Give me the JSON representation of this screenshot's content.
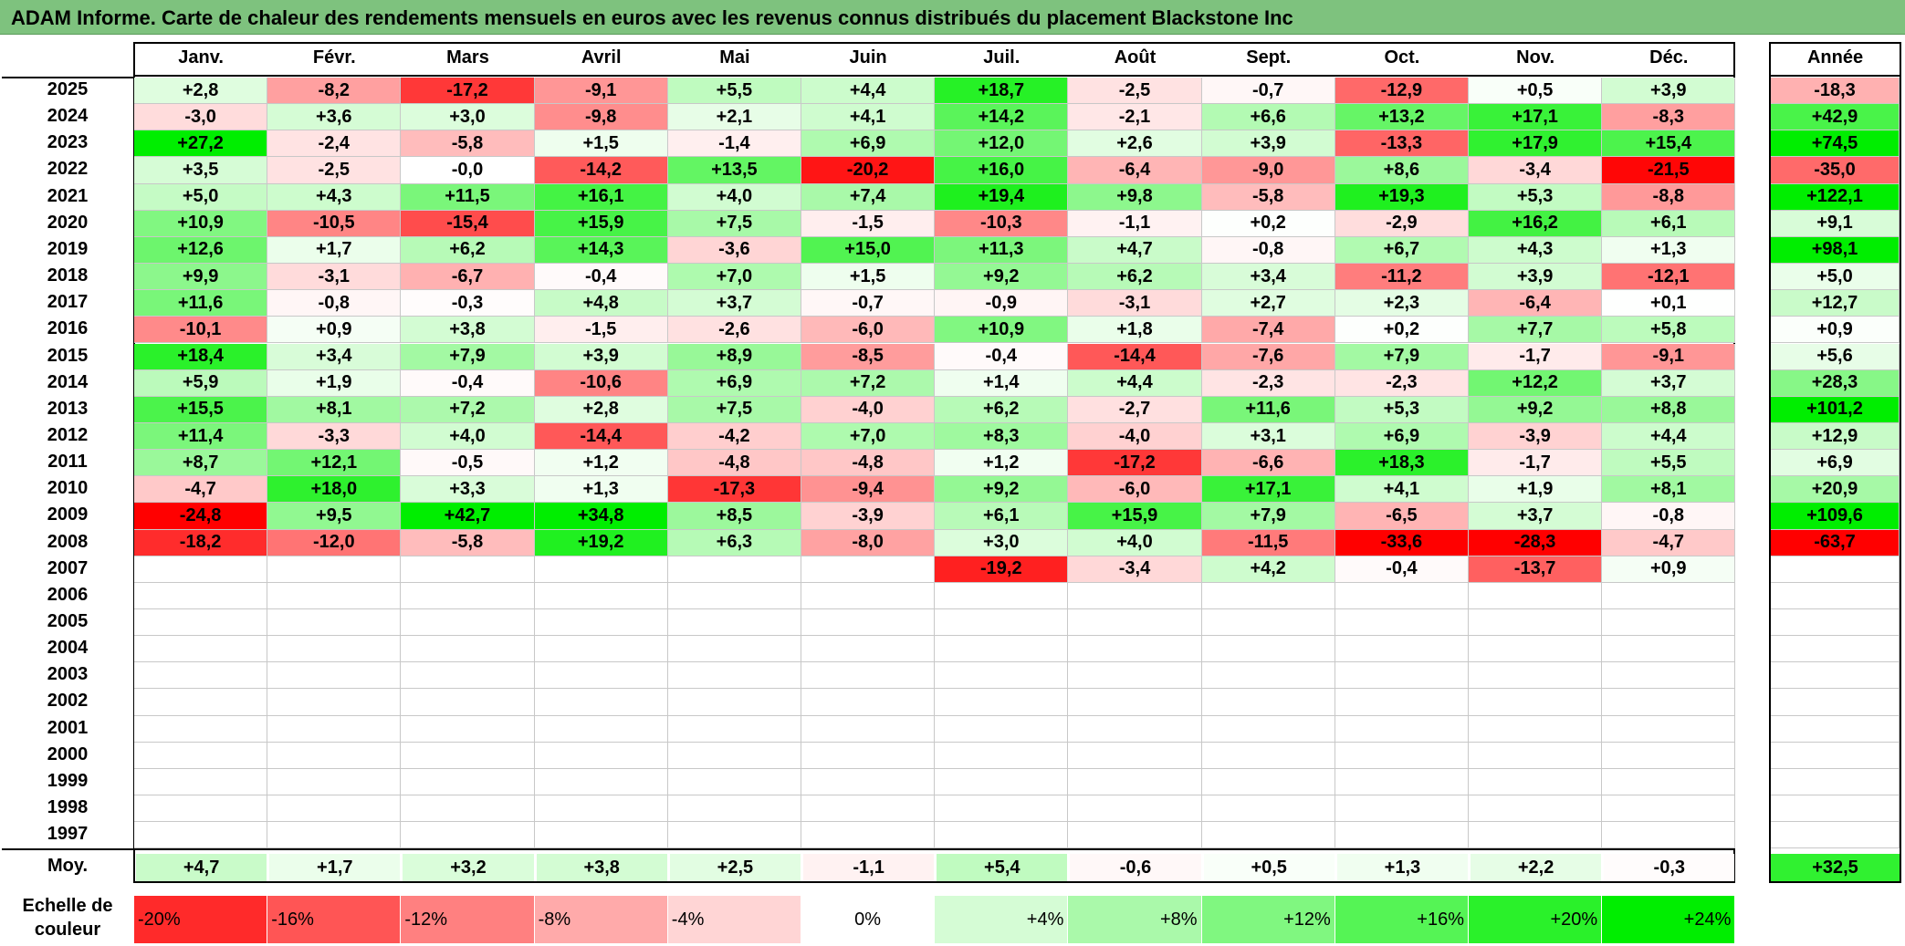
{
  "title": "ADAM Informe. Carte de chaleur des rendements mensuels en euros avec les revenus connus distribués du placement Blackstone Inc",
  "months": [
    "Janv.",
    "Févr.",
    "Mars",
    "Avril",
    "Mai",
    "Juin",
    "Juil.",
    "Août",
    "Sept.",
    "Oct.",
    "Nov.",
    "Déc."
  ],
  "annual_header": "Année",
  "average_label": "Moy.",
  "scale_title": "Echelle de couleur",
  "colors": {
    "title_bg": "#7ec27e",
    "negative_max": "#ff0000",
    "positive_max": "#00ee00",
    "neutral": "#ffffff"
  },
  "chart_data": {
    "type": "heatmap",
    "title": "ADAM Informe. Carte de chaleur des rendements mensuels en euros avec les revenus connus distribués du placement Blackstone Inc",
    "columns": [
      "Janv.",
      "Févr.",
      "Mars",
      "Avril",
      "Mai",
      "Juin",
      "Juil.",
      "Août",
      "Sept.",
      "Oct.",
      "Nov.",
      "Déc."
    ],
    "rows": [
      {
        "year": "2025",
        "values": [
          "+2,8",
          "-8,2",
          "-17,2",
          "-9,1",
          "+5,5",
          "+4,4",
          "+18,7",
          "-2,5",
          "-0,7",
          "-12,9",
          "+0,5",
          "+3,9"
        ],
        "annual": "-18,3"
      },
      {
        "year": "2024",
        "values": [
          "-3,0",
          "+3,6",
          "+3,0",
          "-9,8",
          "+2,1",
          "+4,1",
          "+14,2",
          "-2,1",
          "+6,6",
          "+13,2",
          "+17,1",
          "-8,3"
        ],
        "annual": "+42,9"
      },
      {
        "year": "2023",
        "values": [
          "+27,2",
          "-2,4",
          "-5,8",
          "+1,5",
          "-1,4",
          "+6,9",
          "+12,0",
          "+2,6",
          "+3,9",
          "-13,3",
          "+17,9",
          "+15,4"
        ],
        "annual": "+74,5"
      },
      {
        "year": "2022",
        "values": [
          "+3,5",
          "-2,5",
          "-0,0",
          "-14,2",
          "+13,5",
          "-20,2",
          "+16,0",
          "-6,4",
          "-9,0",
          "+8,6",
          "-3,4",
          "-21,5"
        ],
        "annual": "-35,0"
      },
      {
        "year": "2021",
        "values": [
          "+5,0",
          "+4,3",
          "+11,5",
          "+16,1",
          "+4,0",
          "+7,4",
          "+19,4",
          "+9,8",
          "-5,8",
          "+19,3",
          "+5,3",
          "-8,8"
        ],
        "annual": "+122,1"
      },
      {
        "year": "2020",
        "values": [
          "+10,9",
          "-10,5",
          "-15,4",
          "+15,9",
          "+7,5",
          "-1,5",
          "-10,3",
          "-1,1",
          "+0,2",
          "-2,9",
          "+16,2",
          "+6,1"
        ],
        "annual": "+9,1"
      },
      {
        "year": "2019",
        "values": [
          "+12,6",
          "+1,7",
          "+6,2",
          "+14,3",
          "-3,6",
          "+15,0",
          "+11,3",
          "+4,7",
          "-0,8",
          "+6,7",
          "+4,3",
          "+1,3"
        ],
        "annual": "+98,1"
      },
      {
        "year": "2018",
        "values": [
          "+9,9",
          "-3,1",
          "-6,7",
          "-0,4",
          "+7,0",
          "+1,5",
          "+9,2",
          "+6,2",
          "+3,4",
          "-11,2",
          "+3,9",
          "-12,1"
        ],
        "annual": "+5,0"
      },
      {
        "year": "2017",
        "values": [
          "+11,6",
          "-0,8",
          "-0,3",
          "+4,8",
          "+3,7",
          "-0,7",
          "-0,9",
          "-3,1",
          "+2,7",
          "+2,3",
          "-6,4",
          "+0,1"
        ],
        "annual": "+12,7"
      },
      {
        "year": "2016",
        "values": [
          "-10,1",
          "+0,9",
          "+3,8",
          "-1,5",
          "-2,6",
          "-6,0",
          "+10,9",
          "+1,8",
          "-7,4",
          "+0,2",
          "+7,7",
          "+5,8"
        ],
        "annual": "+0,9"
      },
      {
        "year": "2015",
        "values": [
          "+18,4",
          "+3,4",
          "+7,9",
          "+3,9",
          "+8,9",
          "-8,5",
          "-0,4",
          "-14,4",
          "-7,6",
          "+7,9",
          "-1,7",
          "-9,1"
        ],
        "annual": "+5,6"
      },
      {
        "year": "2014",
        "values": [
          "+5,9",
          "+1,9",
          "-0,4",
          "-10,6",
          "+6,9",
          "+7,2",
          "+1,4",
          "+4,4",
          "-2,3",
          "-2,3",
          "+12,2",
          "+3,7"
        ],
        "annual": "+28,3"
      },
      {
        "year": "2013",
        "values": [
          "+15,5",
          "+8,1",
          "+7,2",
          "+2,8",
          "+7,5",
          "-4,0",
          "+6,2",
          "-2,7",
          "+11,6",
          "+5,3",
          "+9,2",
          "+8,8"
        ],
        "annual": "+101,2"
      },
      {
        "year": "2012",
        "values": [
          "+11,4",
          "-3,3",
          "+4,0",
          "-14,4",
          "-4,2",
          "+7,0",
          "+8,3",
          "-4,0",
          "+3,1",
          "+6,9",
          "-3,9",
          "+4,4"
        ],
        "annual": "+12,9"
      },
      {
        "year": "2011",
        "values": [
          "+8,7",
          "+12,1",
          "-0,5",
          "+1,2",
          "-4,8",
          "-4,8",
          "+1,2",
          "-17,2",
          "-6,6",
          "+18,3",
          "-1,7",
          "+5,5"
        ],
        "annual": "+6,9"
      },
      {
        "year": "2010",
        "values": [
          "-4,7",
          "+18,0",
          "+3,3",
          "+1,3",
          "-17,3",
          "-9,4",
          "+9,2",
          "-6,0",
          "+17,1",
          "+4,1",
          "+1,9",
          "+8,1"
        ],
        "annual": "+20,9"
      },
      {
        "year": "2009",
        "values": [
          "-24,8",
          "+9,5",
          "+42,7",
          "+34,8",
          "+8,5",
          "-3,9",
          "+6,1",
          "+15,9",
          "+7,9",
          "-6,5",
          "+3,7",
          "-0,8"
        ],
        "annual": "+109,6"
      },
      {
        "year": "2008",
        "values": [
          "-18,2",
          "-12,0",
          "-5,8",
          "+19,2",
          "+6,3",
          "-8,0",
          "+3,0",
          "+4,0",
          "-11,5",
          "-33,6",
          "-28,3",
          "-4,7"
        ],
        "annual": "-63,7"
      },
      {
        "year": "2007",
        "values": [
          "",
          "",
          "",
          "",
          "",
          "",
          "-19,2",
          "-3,4",
          "+4,2",
          "-0,4",
          "-13,7",
          "+0,9"
        ],
        "annual": ""
      },
      {
        "year": "2006",
        "values": [
          "",
          "",
          "",
          "",
          "",
          "",
          "",
          "",
          "",
          "",
          "",
          ""
        ],
        "annual": ""
      },
      {
        "year": "2005",
        "values": [
          "",
          "",
          "",
          "",
          "",
          "",
          "",
          "",
          "",
          "",
          "",
          ""
        ],
        "annual": ""
      },
      {
        "year": "2004",
        "values": [
          "",
          "",
          "",
          "",
          "",
          "",
          "",
          "",
          "",
          "",
          "",
          ""
        ],
        "annual": ""
      },
      {
        "year": "2003",
        "values": [
          "",
          "",
          "",
          "",
          "",
          "",
          "",
          "",
          "",
          "",
          "",
          ""
        ],
        "annual": ""
      },
      {
        "year": "2002",
        "values": [
          "",
          "",
          "",
          "",
          "",
          "",
          "",
          "",
          "",
          "",
          "",
          ""
        ],
        "annual": ""
      },
      {
        "year": "2001",
        "values": [
          "",
          "",
          "",
          "",
          "",
          "",
          "",
          "",
          "",
          "",
          "",
          ""
        ],
        "annual": ""
      },
      {
        "year": "2000",
        "values": [
          "",
          "",
          "",
          "",
          "",
          "",
          "",
          "",
          "",
          "",
          "",
          ""
        ],
        "annual": ""
      },
      {
        "year": "1999",
        "values": [
          "",
          "",
          "",
          "",
          "",
          "",
          "",
          "",
          "",
          "",
          "",
          ""
        ],
        "annual": ""
      },
      {
        "year": "1998",
        "values": [
          "",
          "",
          "",
          "",
          "",
          "",
          "",
          "",
          "",
          "",
          "",
          ""
        ],
        "annual": ""
      },
      {
        "year": "1997",
        "values": [
          "",
          "",
          "",
          "",
          "",
          "",
          "",
          "",
          "",
          "",
          "",
          ""
        ],
        "annual": ""
      }
    ],
    "averages": [
      "+4,7",
      "+1,7",
      "+3,2",
      "+3,8",
      "+2,5",
      "-1,1",
      "+5,4",
      "-0,6",
      "+0,5",
      "+1,3",
      "+2,2",
      "-0,3"
    ],
    "average_annual": "+32,5",
    "color_scale": [
      "-20%",
      "-16%",
      "-12%",
      "-8%",
      "-4%",
      "0%",
      "+4%",
      "+8%",
      "+12%",
      "+16%",
      "+20%",
      "+24%"
    ]
  }
}
